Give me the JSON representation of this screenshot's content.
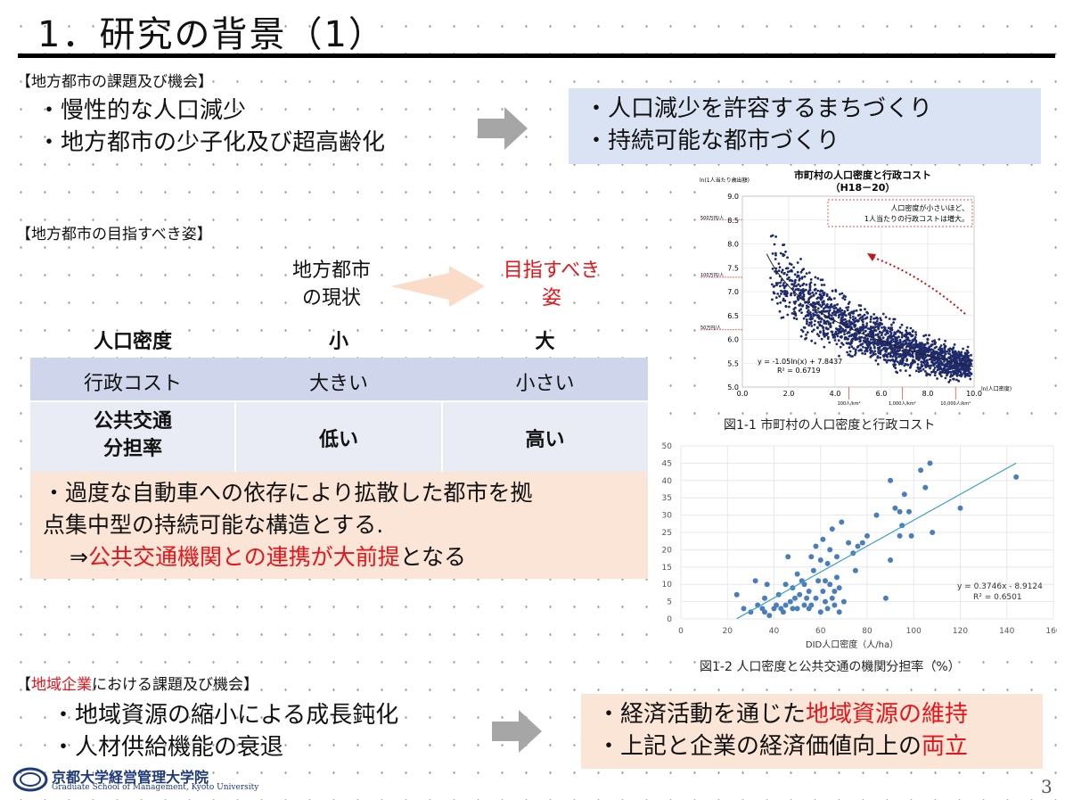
{
  "slide": {
    "title": "1．研究の背景（1）",
    "page_number": "3"
  },
  "section1": {
    "label": "【地方都市の課題及び機会】",
    "left_bullets": [
      "・慢性的な人口減少",
      "・地方都市の少子化及び超高齢化"
    ],
    "right_bullets": [
      "・人口減少を許容するまちづくり",
      "・持続可能な都市づくり"
    ]
  },
  "section2": {
    "label": "【地方都市の目指すべき姿】",
    "col_current": "地方都市\nの現状",
    "col_target": "目指すべき\n姿",
    "rows": [
      {
        "label": "人口密度",
        "current": "小",
        "target": "大"
      },
      {
        "label": "行政コスト",
        "current": "大きい",
        "target": "小さい"
      },
      {
        "label": "公共交通\n分担率",
        "current": "低い",
        "target": "高い"
      }
    ],
    "note_line1": "・過度な自動車への依存により拡散した都市を拠",
    "note_line2": "点集中型の持続可能な構造とする.",
    "note_prefix": "⇒",
    "note_red": "公共交通機関との連携が大前提",
    "note_suffix": "となる"
  },
  "figure1": {
    "caption": "図1-1 市町村の人口密度と行政コスト",
    "chart_data": {
      "type": "scatter",
      "title": "市町村の人口密度と行政コスト",
      "subtitle": "（H18－20）",
      "ylabel": "ln(1人当たり歳出額)",
      "xlabel": "ln(人口密度)",
      "xlim": [
        0,
        10
      ],
      "ylim": [
        5.0,
        9.0
      ],
      "x_ticks": [
        "0.0",
        "2.0",
        "4.0",
        "6.0",
        "8.0",
        "10.0"
      ],
      "y_ticks": [
        "5.0",
        "5.5",
        "6.0",
        "6.5",
        "7.0",
        "7.5",
        "8.0",
        "8.5",
        "9.0"
      ],
      "y_marks": [
        "500万円/人",
        "100万円/人",
        "50万円/人"
      ],
      "x_marks": [
        "100人/km²",
        "1,000人/km²",
        "10,000人/km²"
      ],
      "annotation": "人口密度が小さいほど、\n1人当たりの行政コストは増大。",
      "equation": "y = -1.05ln(x) + 7.8437",
      "r2": "R² = 0.6719",
      "trend": {
        "a": -1.05,
        "b": 7.8437
      },
      "point_count": 1800,
      "point_color": "#1f2a6b"
    }
  },
  "figure2": {
    "caption": "図1-2 人口密度と公共交通の機関分担率（%）",
    "chart_data": {
      "type": "scatter",
      "xlabel": "DID人口密度（人/ha）",
      "xlim": [
        0,
        160
      ],
      "ylim": [
        0,
        50
      ],
      "x_ticks": [
        "0",
        "20",
        "40",
        "60",
        "80",
        "100",
        "120",
        "140",
        "160"
      ],
      "y_ticks": [
        "0",
        "5",
        "10",
        "15",
        "20",
        "25",
        "30",
        "35",
        "40",
        "45",
        "50"
      ],
      "equation": "y = 0.3746x - 8.9124",
      "r2": "R² = 0.6501",
      "trend": {
        "slope": 0.3746,
        "intercept": -8.9124,
        "x_from": 24,
        "x_to": 144
      },
      "point_color": "#4a7ebb",
      "line_color": "#3aa0c8",
      "points": [
        [
          24,
          7
        ],
        [
          27,
          3
        ],
        [
          30,
          2
        ],
        [
          32,
          11
        ],
        [
          33,
          4
        ],
        [
          35,
          3
        ],
        [
          36,
          6
        ],
        [
          36,
          2
        ],
        [
          37,
          10
        ],
        [
          38,
          1
        ],
        [
          40,
          3
        ],
        [
          41,
          4
        ],
        [
          42,
          7
        ],
        [
          43,
          3
        ],
        [
          44,
          2
        ],
        [
          45,
          10
        ],
        [
          45,
          4
        ],
        [
          46,
          18
        ],
        [
          47,
          5
        ],
        [
          48,
          9
        ],
        [
          48,
          3
        ],
        [
          49,
          6
        ],
        [
          50,
          3
        ],
        [
          50,
          13
        ],
        [
          51,
          7
        ],
        [
          52,
          11
        ],
        [
          53,
          4
        ],
        [
          53,
          10
        ],
        [
          54,
          6
        ],
        [
          55,
          3
        ],
        [
          55,
          8
        ],
        [
          56,
          4
        ],
        [
          56,
          18
        ],
        [
          57,
          14
        ],
        [
          58,
          6
        ],
        [
          58,
          21
        ],
        [
          59,
          11
        ],
        [
          60,
          2
        ],
        [
          60,
          17
        ],
        [
          61,
          8
        ],
        [
          61,
          23
        ],
        [
          62,
          5
        ],
        [
          62,
          11
        ],
        [
          63,
          3
        ],
        [
          63,
          16
        ],
        [
          64,
          10
        ],
        [
          64,
          20
        ],
        [
          65,
          6
        ],
        [
          65,
          26
        ],
        [
          66,
          4
        ],
        [
          66,
          8
        ],
        [
          67,
          12
        ],
        [
          67,
          18
        ],
        [
          68,
          2
        ],
        [
          68,
          9
        ],
        [
          69,
          28
        ],
        [
          70,
          5
        ],
        [
          72,
          22
        ],
        [
          74,
          19
        ],
        [
          75,
          14
        ],
        [
          76,
          21
        ],
        [
          78,
          22
        ],
        [
          80,
          24
        ],
        [
          84,
          30
        ],
        [
          88,
          6
        ],
        [
          90,
          40
        ],
        [
          90,
          17
        ],
        [
          92,
          32
        ],
        [
          94,
          31
        ],
        [
          94,
          24
        ],
        [
          95,
          27
        ],
        [
          96,
          36
        ],
        [
          98,
          31
        ],
        [
          99,
          24
        ],
        [
          103,
          43
        ],
        [
          105,
          38
        ],
        [
          107,
          45
        ],
        [
          108,
          25
        ],
        [
          120,
          32
        ],
        [
          144,
          41
        ]
      ]
    }
  },
  "section3": {
    "label_prefix": "【",
    "label_red": "地域企業",
    "label_suffix": "における課題及び機会】",
    "left_bullets": [
      "・地域資源の縮小による成長鈍化",
      "・人材供給機能の衰退"
    ],
    "right1_prefix": "・経済活動を通じた",
    "right1_red": "地域資源の維持",
    "right2_prefix": "・上記と企業の経済価値向上の",
    "right2_red": "両立"
  },
  "logo": {
    "name_ja": "京都大学経営管理大学院",
    "name_en": "Graduate School of Management, Kyoto University"
  }
}
